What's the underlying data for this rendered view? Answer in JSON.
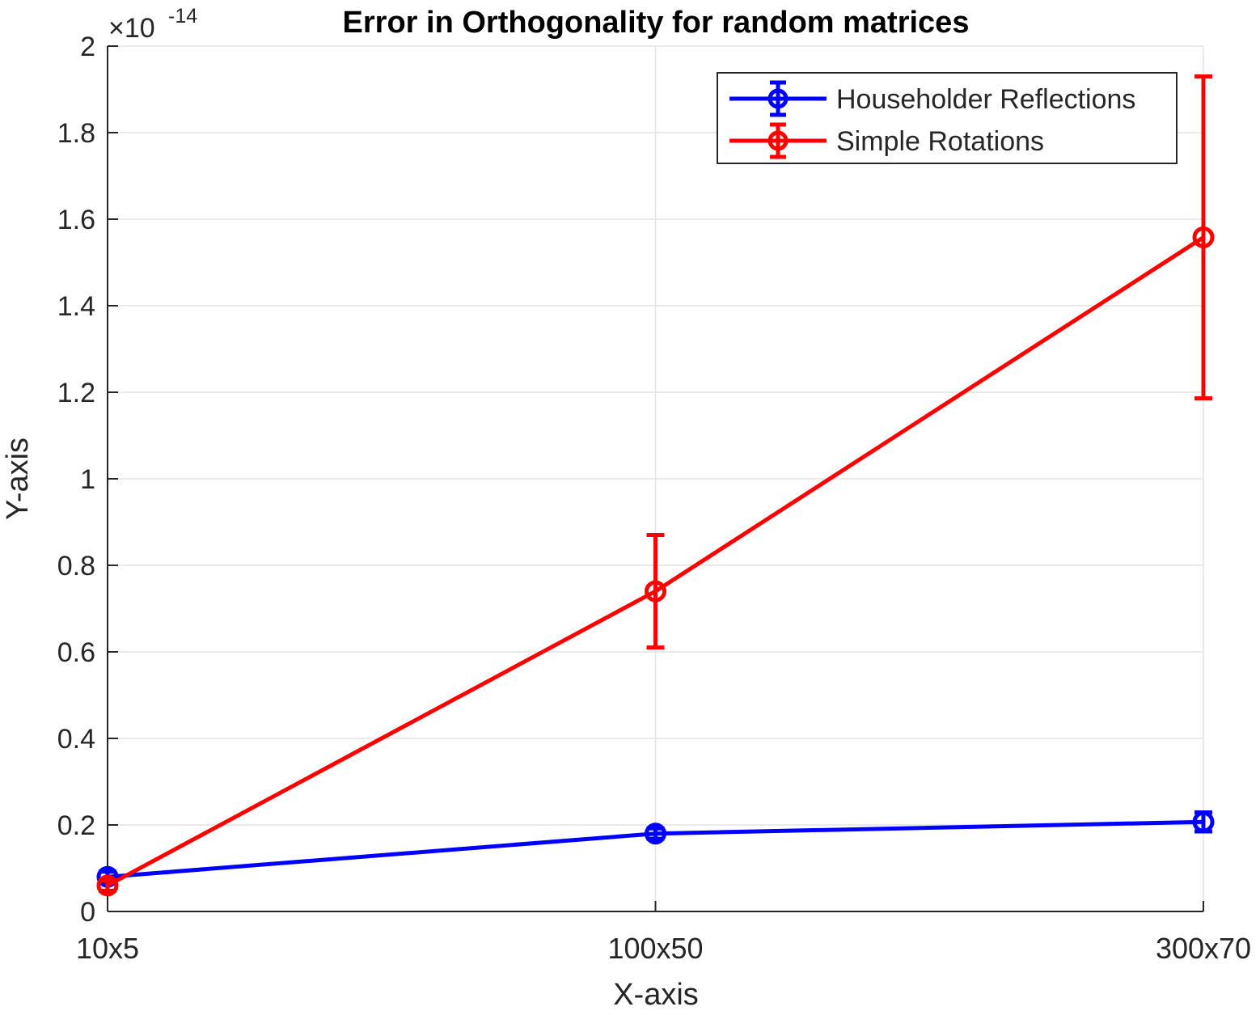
{
  "chart_data": {
    "type": "line",
    "title": "Error in Orthogonality for random matrices",
    "xlabel": "X-axis",
    "ylabel": "Y-axis",
    "y_exponent_label": "×10",
    "y_exponent": "-14",
    "categories": [
      "10x5",
      "100x50",
      "300x70"
    ],
    "ylim": [
      0,
      2
    ],
    "y_ticks": [
      0,
      0.2,
      0.4,
      0.6,
      0.8,
      1,
      1.2,
      1.4,
      1.6,
      1.8,
      2
    ],
    "y_tick_labels": [
      "0",
      "0.2",
      "0.4",
      "0.6",
      "0.8",
      "1",
      "1.2",
      "1.4",
      "1.6",
      "1.8",
      "2"
    ],
    "y_scale_factor": "1e-14",
    "grid": true,
    "legend_position": "top-right",
    "series": [
      {
        "name": "Householder Reflections",
        "color": "#0000ff",
        "marker": "circle",
        "values": [
          0.08,
          0.18,
          0.207
        ],
        "error": [
          0.012,
          0.012,
          0.022
        ]
      },
      {
        "name": "Simple Rotations",
        "color": "#ff0000",
        "marker": "circle",
        "values": [
          0.06,
          0.74,
          1.558
        ],
        "error": [
          0.012,
          0.13,
          0.372
        ]
      }
    ]
  }
}
